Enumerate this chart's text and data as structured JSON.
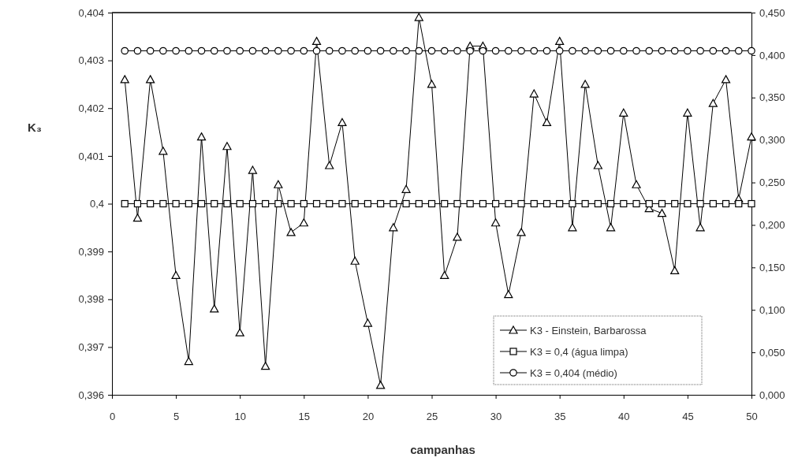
{
  "chart_data": {
    "type": "line",
    "xlabel": "campanhas",
    "ylabel": "K₃",
    "x": [
      1,
      2,
      3,
      4,
      5,
      6,
      7,
      8,
      9,
      10,
      11,
      12,
      13,
      14,
      15,
      16,
      17,
      18,
      19,
      20,
      21,
      22,
      23,
      24,
      25,
      26,
      27,
      28,
      29,
      30,
      31,
      32,
      33,
      34,
      35,
      36,
      37,
      38,
      39,
      40,
      41,
      42,
      43,
      44,
      45,
      46,
      47,
      48,
      49,
      50
    ],
    "series": [
      {
        "name": "K3 - Einstein, Barbarossa",
        "color": "#000000",
        "marker": "triangle",
        "values": [
          0.4026,
          0.3997,
          0.4026,
          0.4011,
          0.3985,
          0.3967,
          0.4014,
          0.3978,
          0.4012,
          0.3973,
          0.4007,
          0.3966,
          0.4004,
          0.3994,
          0.3996,
          0.4034,
          0.4008,
          0.4017,
          0.3988,
          0.3975,
          0.3962,
          0.3995,
          0.4003,
          0.4039,
          0.4025,
          0.3985,
          0.3993,
          0.4033,
          0.4033,
          0.3996,
          0.3981,
          0.3994,
          0.4023,
          0.4017,
          0.4034,
          0.3995,
          0.4025,
          0.4008,
          0.3995,
          0.4019,
          0.4004,
          0.3999,
          0.3998,
          0.3986,
          0.4019,
          0.3995,
          0.4021,
          0.4026,
          0.4001,
          0.4014
        ]
      },
      {
        "name": "K3 = 0,4 (água limpa)",
        "color": "#000000",
        "marker": "square",
        "values": [
          0.4,
          0.4,
          0.4,
          0.4,
          0.4,
          0.4,
          0.4,
          0.4,
          0.4,
          0.4,
          0.4,
          0.4,
          0.4,
          0.4,
          0.4,
          0.4,
          0.4,
          0.4,
          0.4,
          0.4,
          0.4,
          0.4,
          0.4,
          0.4,
          0.4,
          0.4,
          0.4,
          0.4,
          0.4,
          0.4,
          0.4,
          0.4,
          0.4,
          0.4,
          0.4,
          0.4,
          0.4,
          0.4,
          0.4,
          0.4,
          0.4,
          0.4,
          0.4,
          0.4,
          0.4,
          0.4,
          0.4,
          0.4,
          0.4,
          0.4
        ]
      },
      {
        "name": "K3 = 0,404 (médio)",
        "color": "#000000",
        "marker": "circle",
        "values": [
          0.4032,
          0.4032,
          0.4032,
          0.4032,
          0.4032,
          0.4032,
          0.4032,
          0.4032,
          0.4032,
          0.4032,
          0.4032,
          0.4032,
          0.4032,
          0.4032,
          0.4032,
          0.4032,
          0.4032,
          0.4032,
          0.4032,
          0.4032,
          0.4032,
          0.4032,
          0.4032,
          0.4032,
          0.4032,
          0.4032,
          0.4032,
          0.4032,
          0.4032,
          0.4032,
          0.4032,
          0.4032,
          0.4032,
          0.4032,
          0.4032,
          0.4032,
          0.4032,
          0.4032,
          0.4032,
          0.4032,
          0.4032,
          0.4032,
          0.4032,
          0.4032,
          0.4032,
          0.4032,
          0.4032,
          0.4032,
          0.4032,
          0.4032
        ]
      }
    ],
    "xlim": [
      0,
      50
    ],
    "xticks": [
      0,
      5,
      10,
      15,
      20,
      25,
      30,
      35,
      40,
      45,
      50
    ],
    "ylim": [
      0.396,
      0.404
    ],
    "yticks": [
      {
        "value": 0.396,
        "label": "0,396"
      },
      {
        "value": 0.397,
        "label": "0,397"
      },
      {
        "value": 0.398,
        "label": "0,398"
      },
      {
        "value": 0.399,
        "label": "0,399"
      },
      {
        "value": 0.4,
        "label": "0,4"
      },
      {
        "value": 0.401,
        "label": "0,401"
      },
      {
        "value": 0.402,
        "label": "0,402"
      },
      {
        "value": 0.403,
        "label": "0,403"
      },
      {
        "value": 0.404,
        "label": "0,404"
      }
    ],
    "y2lim": [
      0,
      0.45
    ],
    "y2ticks": [
      {
        "value": 0,
        "label": "0,000"
      },
      {
        "value": 0.05,
        "label": "0,050"
      },
      {
        "value": 0.1,
        "label": "0,100"
      },
      {
        "value": 0.15,
        "label": "0,150"
      },
      {
        "value": 0.2,
        "label": "0,200"
      },
      {
        "value": 0.25,
        "label": "0,250"
      },
      {
        "value": 0.3,
        "label": "0,300"
      },
      {
        "value": 0.35,
        "label": "0,350"
      },
      {
        "value": 0.4,
        "label": "0,400"
      },
      {
        "value": 0.45,
        "label": "0,450"
      }
    ],
    "legend": "bottom right",
    "grid": false,
    "line_style": "solid"
  }
}
